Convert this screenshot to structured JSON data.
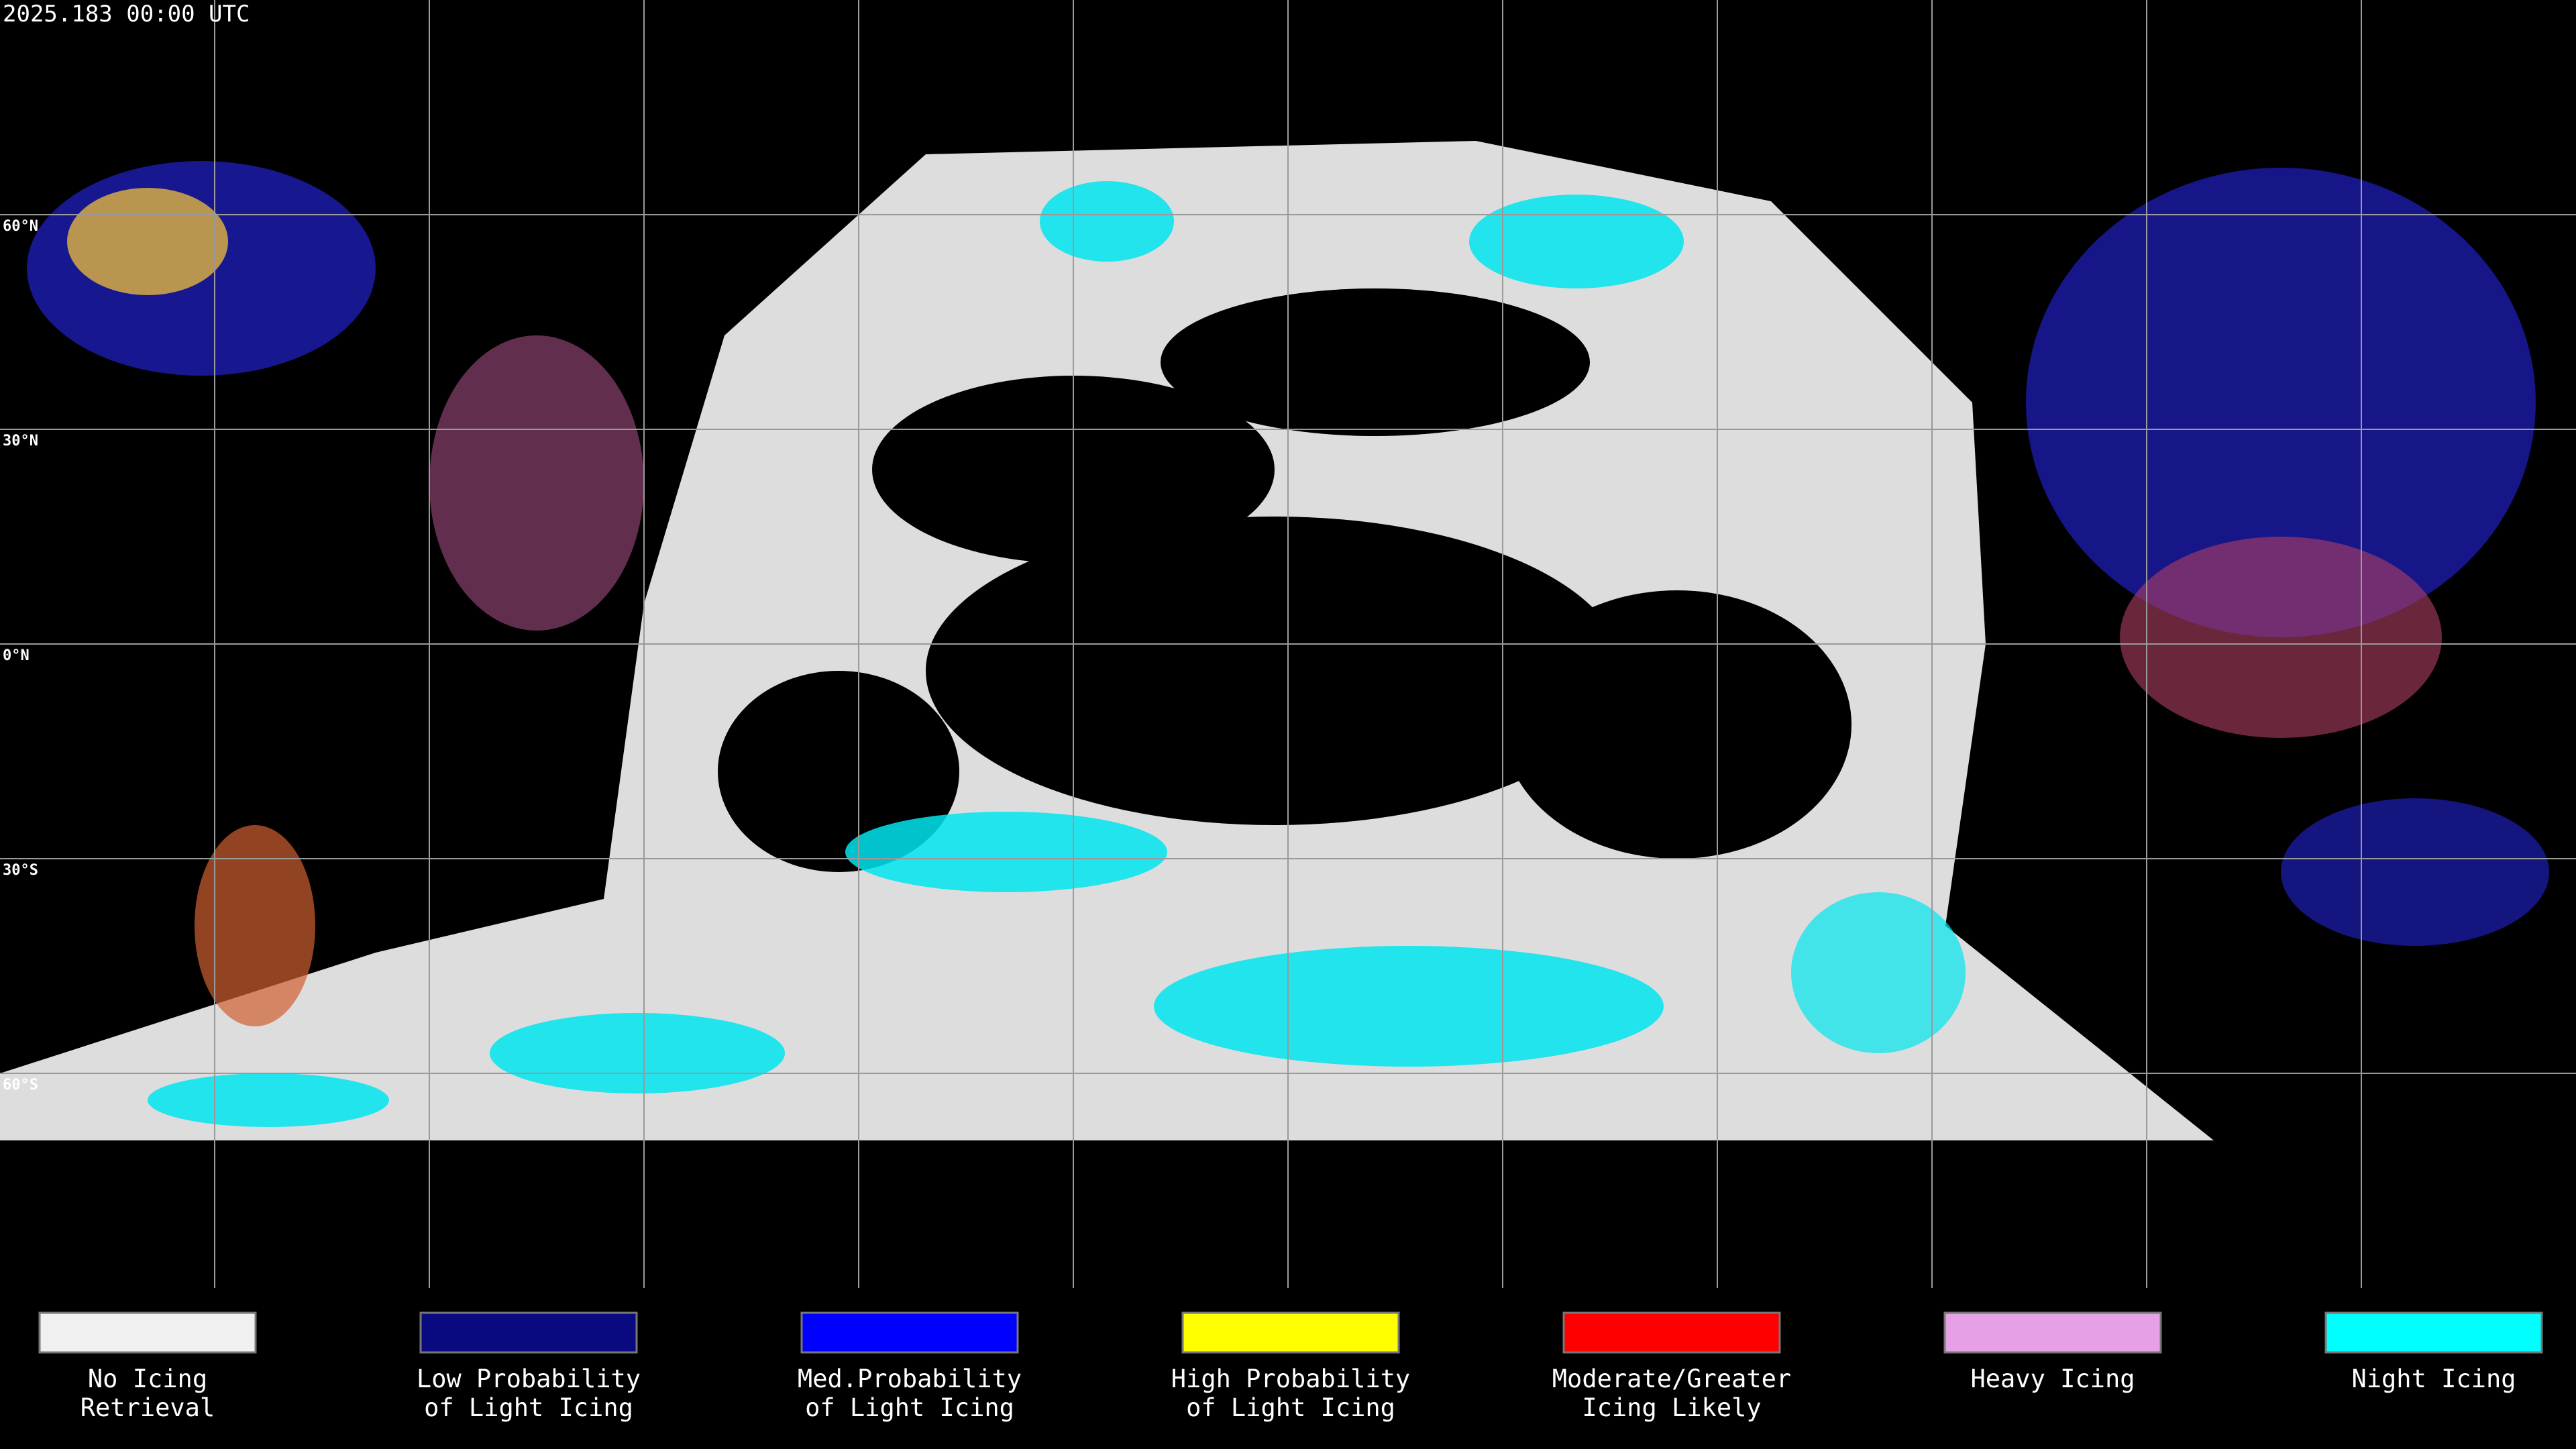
{
  "header": {
    "timestamp": "2025.183 00:00 UTC"
  },
  "map": {
    "lat_labels": [
      "60°N",
      "30°N",
      "0°N",
      "30°S",
      "60°S"
    ]
  },
  "legend": {
    "items": [
      {
        "lines": [
          "No Icing",
          "Retrieval"
        ],
        "color": "#f0f0f0"
      },
      {
        "lines": [
          "Low Probability",
          "of Light Icing"
        ],
        "color": "#0a0a80"
      },
      {
        "lines": [
          "Med.Probability",
          "of Light Icing"
        ],
        "color": "#0000ff"
      },
      {
        "lines": [
          "High Probability",
          "of Light Icing"
        ],
        "color": "#ffff00"
      },
      {
        "lines": [
          "Moderate/Greater",
          "Icing Likely"
        ],
        "color": "#ff0000"
      },
      {
        "lines": [
          "Heavy Icing"
        ],
        "color": "#e6a0e6"
      },
      {
        "lines": [
          "Night Icing"
        ],
        "color": "#00ffff"
      }
    ]
  }
}
